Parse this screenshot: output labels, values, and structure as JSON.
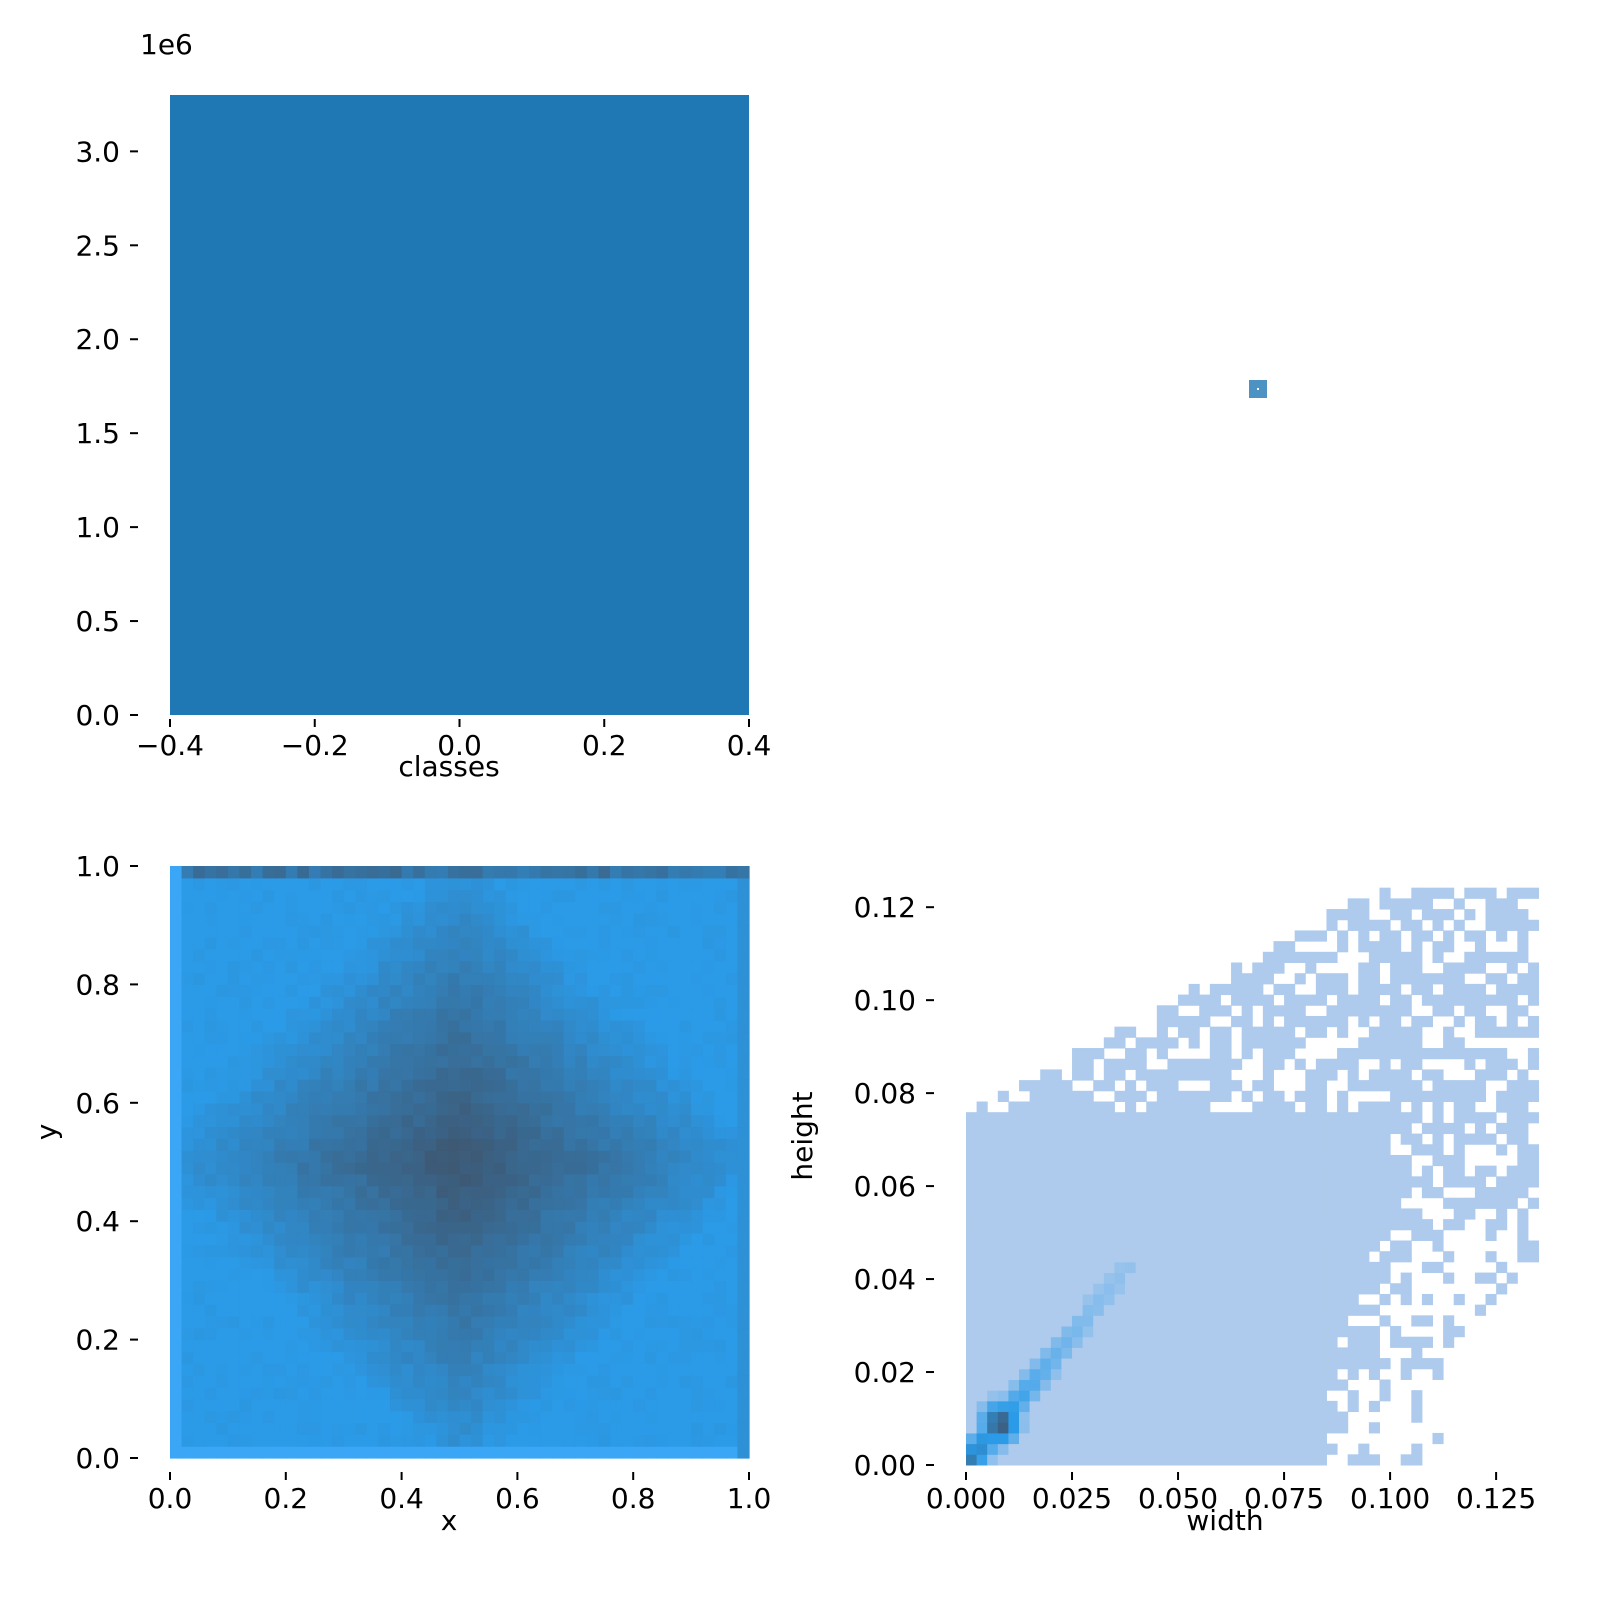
{
  "chart_data": [
    {
      "type": "bar",
      "panel": "classes-histogram",
      "xlabel": "classes",
      "ylabel": "",
      "xlim": [
        -0.4,
        0.4
      ],
      "ylim": [
        0,
        3300000
      ],
      "offset_text": "1e6",
      "xticks": [
        "−0.4",
        "−0.2",
        "0.0",
        "0.2",
        "0.4"
      ],
      "xtick_values": [
        -0.4,
        -0.2,
        0.0,
        0.2,
        0.4
      ],
      "yticks": [
        "0.0",
        "0.5",
        "1.0",
        "1.5",
        "2.0",
        "2.5",
        "3.0"
      ],
      "ytick_values": [
        0,
        500000,
        1000000,
        1500000,
        2000000,
        2500000,
        3000000
      ],
      "categories": [
        "0"
      ],
      "values": [
        3300000
      ],
      "color": "#1f77b4"
    },
    {
      "type": "scatter",
      "panel": "classes-vs-class-empty",
      "points": [
        {
          "x": 0,
          "y": 0
        }
      ],
      "color": "#1f77b4"
    },
    {
      "type": "heatmap",
      "panel": "x-y-histogram",
      "xlabel": "x",
      "ylabel": "y",
      "xlim": [
        0,
        1
      ],
      "ylim": [
        0,
        1
      ],
      "xticks": [
        "0.0",
        "0.2",
        "0.4",
        "0.6",
        "0.8",
        "1.0"
      ],
      "xtick_values": [
        0,
        0.2,
        0.4,
        0.6,
        0.8,
        1.0
      ],
      "yticks": [
        "0.0",
        "0.2",
        "0.4",
        "0.6",
        "0.8",
        "1.0"
      ],
      "ytick_values": [
        0,
        0.2,
        0.4,
        0.6,
        0.8,
        1.0
      ],
      "bins": 50,
      "density_peak": {
        "x": 0.5,
        "y": 0.5
      },
      "color_low": "#2b9be8",
      "color_high": "#3f546c"
    },
    {
      "type": "heatmap",
      "panel": "width-height-histogram",
      "xlabel": "width",
      "ylabel": "height",
      "xlim": [
        0,
        0.137
      ],
      "ylim": [
        0,
        0.128
      ],
      "xticks": [
        "0.000",
        "0.025",
        "0.050",
        "0.075",
        "0.100",
        "0.125"
      ],
      "xtick_values": [
        0,
        0.025,
        0.05,
        0.075,
        0.1,
        0.125
      ],
      "yticks": [
        "0.00",
        "0.02",
        "0.04",
        "0.06",
        "0.08",
        "0.10",
        "0.12"
      ],
      "ytick_values": [
        0,
        0.02,
        0.04,
        0.06,
        0.08,
        0.1,
        0.12
      ],
      "density_peak": {
        "x": 0.008,
        "y": 0.009
      },
      "color_low": "#aecbed",
      "color_mid": "#2b9be8",
      "color_high": "#3f546c"
    }
  ]
}
